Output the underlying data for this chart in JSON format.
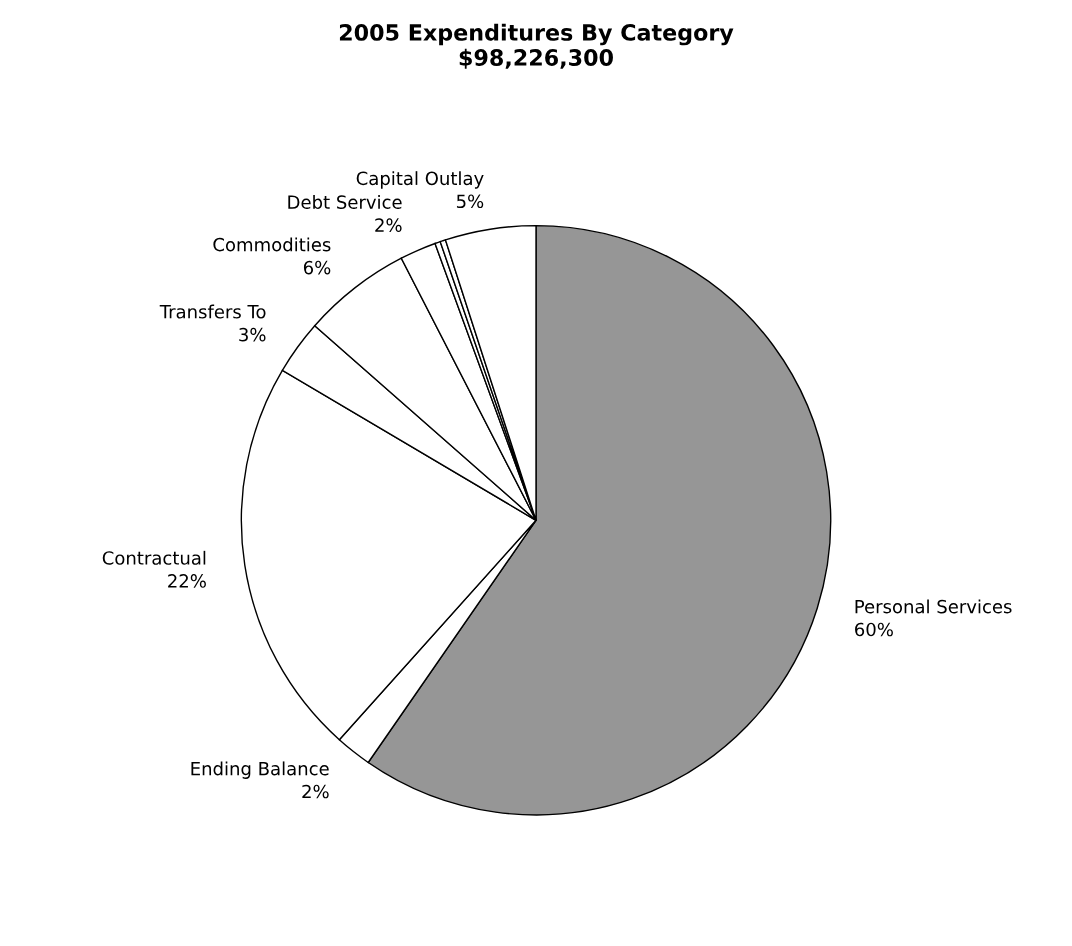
{
  "chart_data": {
    "type": "pie",
    "title": "2005 Expenditures By Category\n$98,226,300",
    "categories": [
      "Personal Services",
      "Ending Balance",
      "Contractual",
      "Transfers To",
      "Commodities",
      "Debt Service",
      null,
      null,
      "Capital Outlay"
    ],
    "values": [
      60,
      2,
      22,
      3,
      6,
      2,
      0.3,
      0.3,
      5
    ],
    "value_labels": [
      "60%",
      "2%",
      "22%",
      "3%",
      "6%",
      "2%",
      null,
      null,
      "5%"
    ],
    "colors": [
      "#969696",
      "#ffffff",
      "#ffffff",
      "#ffffff",
      "#ffffff",
      "#ffffff",
      "#ffffff",
      "#ffffff",
      "#ffffff"
    ],
    "legend": false
  }
}
